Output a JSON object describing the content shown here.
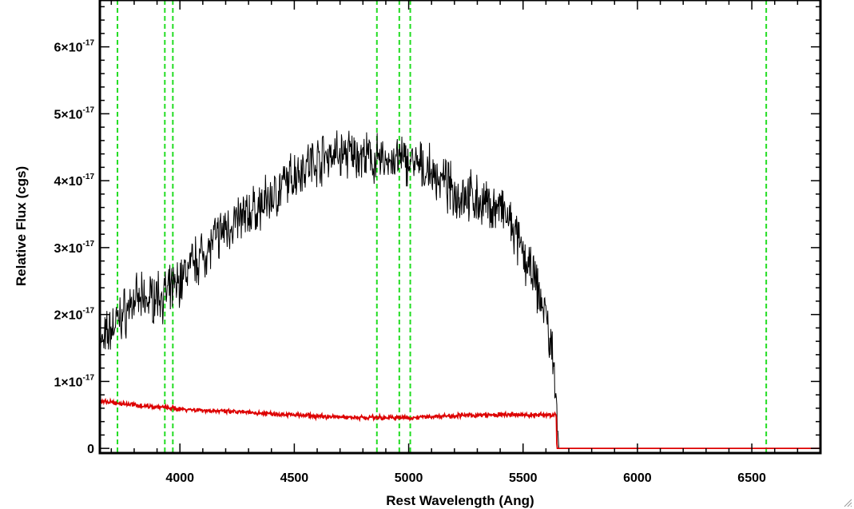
{
  "chart_data": {
    "type": "line",
    "xlabel": "Rest Wavelength (Ang)",
    "ylabel": "Relative Flux (cgs)",
    "xlim": [
      3650,
      6800
    ],
    "ylim": [
      -7e-19,
      6.7e-17
    ],
    "grid": false,
    "x_ticks": [
      {
        "value": 4000,
        "label": "4000"
      },
      {
        "value": 4500,
        "label": "4500"
      },
      {
        "value": 5000,
        "label": "5000"
      },
      {
        "value": 5500,
        "label": "5500"
      },
      {
        "value": 6000,
        "label": "6000"
      },
      {
        "value": 6500,
        "label": "6500"
      }
    ],
    "y_ticks": [
      {
        "value": 0,
        "mantissa": "0",
        "exponent": ""
      },
      {
        "value": 1e-17,
        "mantissa": "1×10",
        "exponent": "-17"
      },
      {
        "value": 2e-17,
        "mantissa": "2×10",
        "exponent": "-17"
      },
      {
        "value": 3e-17,
        "mantissa": "3×10",
        "exponent": "-17"
      },
      {
        "value": 4e-17,
        "mantissa": "4×10",
        "exponent": "-17"
      },
      {
        "value": 5e-17,
        "mantissa": "5×10",
        "exponent": "-17"
      },
      {
        "value": 6e-17,
        "mantissa": "6×10",
        "exponent": "-17"
      }
    ],
    "vlines": {
      "color": "#22dd22",
      "style": "dashed",
      "x": [
        3727,
        3934,
        3969,
        4861,
        4959,
        5007,
        6563
      ]
    },
    "series": [
      {
        "color": "#000000",
        "noise": 0.45,
        "x": [
          3650,
          3700,
          3750,
          3800,
          3850,
          3900,
          3950,
          4000,
          4050,
          4100,
          4150,
          4200,
          4250,
          4300,
          4350,
          4400,
          4450,
          4500,
          4550,
          4600,
          4650,
          4700,
          4750,
          4800,
          4850,
          4900,
          4950,
          5000,
          5050,
          5100,
          5150,
          5200,
          5250,
          5300,
          5350,
          5400,
          5450,
          5500,
          5550,
          5600,
          5640,
          5648,
          5655,
          6800
        ],
        "y": [
          1.5e-17,
          1.8e-17,
          2e-17,
          2.2e-17,
          2.2e-17,
          2.3e-17,
          2.3e-17,
          2.5e-17,
          2.75e-17,
          2.9e-17,
          3.1e-17,
          3.3e-17,
          3.4e-17,
          3.5e-17,
          3.6e-17,
          3.75e-17,
          3.9e-17,
          4.1e-17,
          4.25e-17,
          4.3e-17,
          4.4e-17,
          4.4e-17,
          4.4e-17,
          4.35e-17,
          4.3e-17,
          4.3e-17,
          4.3e-17,
          4.3e-17,
          4.2e-17,
          4.1e-17,
          4e-17,
          3.8e-17,
          3.8e-17,
          3.7e-17,
          3.6e-17,
          3.6e-17,
          3.3e-17,
          2.9e-17,
          2.5e-17,
          2e-17,
          1.1e-17,
          6e-18,
          0,
          0
        ]
      },
      {
        "color": "#dd0000",
        "noise": 0.04,
        "x": [
          3650,
          3800,
          4000,
          4200,
          4400,
          4600,
          4800,
          5000,
          5200,
          5400,
          5600,
          5645,
          5648,
          6800
        ],
        "y": [
          7e-18,
          6.5e-18,
          5.9e-18,
          5.5e-18,
          5.2e-18,
          4.8e-18,
          4.6e-18,
          4.6e-18,
          4.9e-18,
          5e-18,
          5e-18,
          5e-18,
          0,
          0
        ]
      }
    ]
  }
}
